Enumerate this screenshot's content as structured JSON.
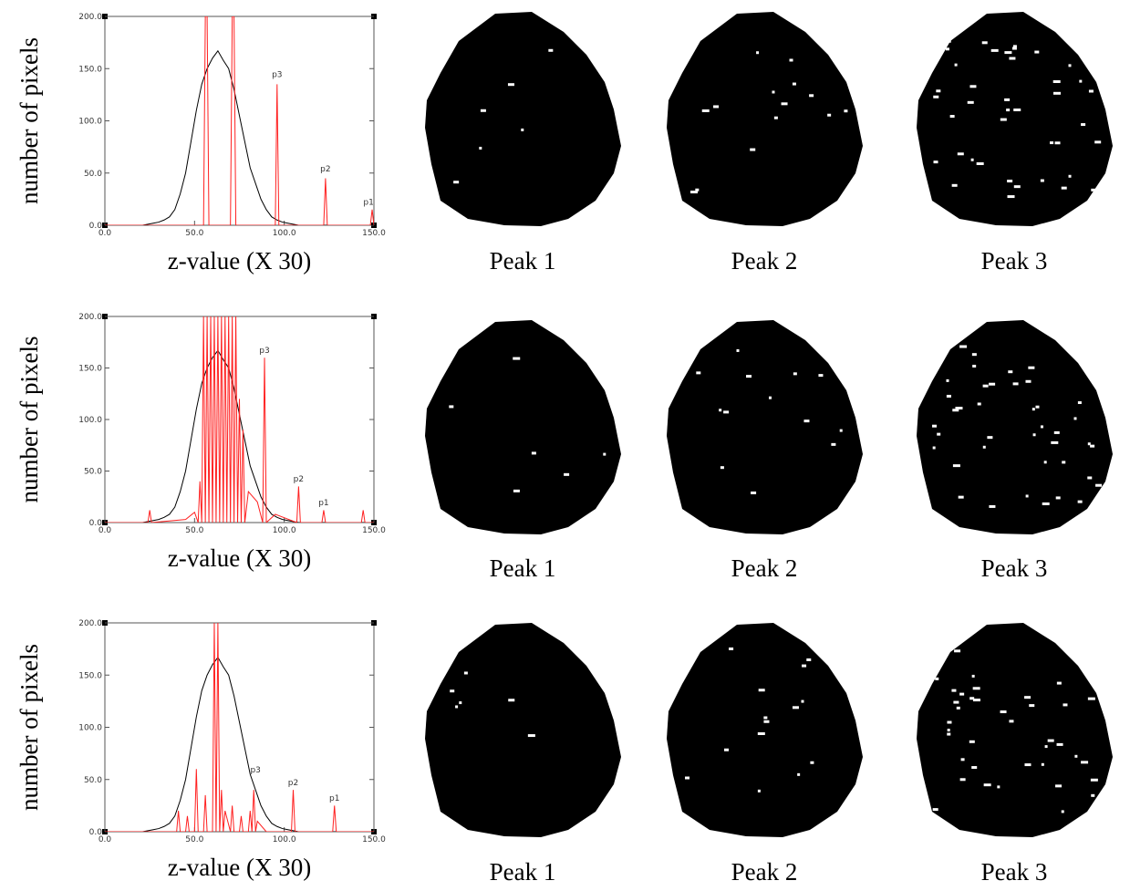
{
  "chart_data": [
    {
      "type": "line",
      "ylabel": "number of pixels",
      "xlabel": "z-value (X 30)",
      "xlim": [
        0,
        150
      ],
      "ylim": [
        0,
        200
      ],
      "xticks": [
        {
          "value": 0,
          "label": "0.0"
        },
        {
          "value": 50,
          "label": "50.0"
        },
        {
          "value": 100,
          "label": "100.0"
        },
        {
          "value": 150,
          "label": "150.0"
        }
      ],
      "yticks": [
        {
          "value": 0,
          "label": "0.0"
        },
        {
          "value": 50,
          "label": "50.0"
        },
        {
          "value": 100,
          "label": "100.0"
        },
        {
          "value": 150,
          "label": "150.0"
        },
        {
          "value": 200,
          "label": "200.0"
        }
      ],
      "series": [
        {
          "color": "#000000",
          "x": [
            0,
            3,
            6,
            9,
            12,
            15,
            18,
            21,
            24,
            27,
            30,
            33,
            36,
            39,
            42,
            45,
            48,
            51,
            54,
            57,
            60,
            63,
            66,
            69,
            72,
            75,
            78,
            81,
            84,
            87,
            90,
            93,
            96,
            99,
            102,
            105,
            108,
            111,
            114,
            117,
            120,
            123,
            126,
            129,
            132,
            135,
            138,
            141,
            144,
            147,
            150
          ],
          "values": [
            0,
            0,
            0,
            0,
            0,
            0,
            0,
            0,
            1,
            2,
            3,
            5,
            8,
            15,
            30,
            50,
            80,
            110,
            135,
            150,
            160,
            167,
            158,
            150,
            130,
            105,
            80,
            55,
            40,
            25,
            15,
            8,
            5,
            3,
            2,
            1,
            0,
            0,
            0,
            0,
            0,
            0,
            0,
            0,
            0,
            0,
            0,
            0,
            0,
            0,
            0
          ]
        },
        {
          "color": "#ff2020",
          "x": [
            0,
            55,
            56,
            57,
            58,
            59,
            70,
            71,
            72,
            73,
            74,
            95,
            96,
            97,
            122,
            123,
            124,
            148,
            149,
            150
          ],
          "values": [
            0,
            0,
            200,
            200,
            0,
            0,
            0,
            200,
            200,
            0,
            0,
            0,
            135,
            0,
            0,
            45,
            0,
            0,
            15,
            0
          ]
        }
      ],
      "annotations": [
        {
          "text": "p3",
          "x": 96,
          "y": 140
        },
        {
          "text": "p2",
          "x": 123,
          "y": 50
        },
        {
          "text": "p1",
          "x": 147,
          "y": 18
        }
      ]
    },
    {
      "type": "line",
      "ylabel": "number of pixels",
      "xlabel": "z-value (X 30)",
      "xlim": [
        0,
        150
      ],
      "ylim": [
        0,
        200
      ],
      "xticks": [
        {
          "value": 0,
          "label": "0.0"
        },
        {
          "value": 50,
          "label": "50.0"
        },
        {
          "value": 100,
          "label": "100.0"
        },
        {
          "value": 150,
          "label": "150.0"
        }
      ],
      "yticks": [
        {
          "value": 0,
          "label": "0.0"
        },
        {
          "value": 50,
          "label": "50.0"
        },
        {
          "value": 100,
          "label": "100.0"
        },
        {
          "value": 150,
          "label": "150.0"
        },
        {
          "value": 200,
          "label": "200.0"
        }
      ],
      "series": [
        {
          "color": "#000000",
          "x": [
            0,
            3,
            6,
            9,
            12,
            15,
            18,
            21,
            24,
            27,
            30,
            33,
            36,
            39,
            42,
            45,
            48,
            51,
            54,
            57,
            60,
            63,
            66,
            69,
            72,
            75,
            78,
            81,
            84,
            87,
            90,
            93,
            96,
            99,
            102,
            105,
            108,
            111,
            114,
            117,
            120,
            123,
            126,
            129,
            132,
            135,
            138,
            141,
            144,
            147,
            150
          ],
          "values": [
            0,
            0,
            0,
            0,
            0,
            0,
            0,
            0,
            1,
            2,
            3,
            5,
            8,
            15,
            30,
            50,
            80,
            110,
            135,
            150,
            160,
            167,
            158,
            150,
            130,
            105,
            80,
            55,
            40,
            25,
            15,
            8,
            5,
            3,
            2,
            1,
            0,
            0,
            0,
            0,
            0,
            0,
            0,
            0,
            0,
            0,
            0,
            0,
            0,
            0,
            0
          ]
        },
        {
          "color": "#ff2020",
          "x": [
            0,
            24,
            25,
            26,
            45,
            50,
            52,
            53,
            54,
            55,
            56,
            57,
            58,
            59,
            60,
            61,
            62,
            63,
            64,
            65,
            66,
            67,
            68,
            69,
            70,
            71,
            72,
            73,
            74,
            75,
            76,
            77,
            78,
            80,
            85,
            88,
            89,
            90,
            95,
            107,
            108,
            109,
            121,
            122,
            123,
            143,
            144,
            145,
            150
          ],
          "values": [
            0,
            0,
            12,
            0,
            3,
            10,
            0,
            40,
            0,
            200,
            0,
            200,
            0,
            200,
            0,
            200,
            0,
            200,
            0,
            200,
            0,
            200,
            0,
            200,
            0,
            200,
            0,
            200,
            0,
            120,
            0,
            90,
            0,
            30,
            20,
            0,
            160,
            0,
            8,
            0,
            35,
            0,
            0,
            12,
            0,
            0,
            12,
            0,
            0
          ]
        }
      ],
      "annotations": [
        {
          "text": "p3",
          "x": 89,
          "y": 163
        },
        {
          "text": "p2",
          "x": 108,
          "y": 38
        },
        {
          "text": "p1",
          "x": 122,
          "y": 15
        }
      ]
    },
    {
      "type": "line",
      "ylabel": "number of pixels",
      "xlabel": "z-value (X 30)",
      "xlim": [
        0,
        150
      ],
      "ylim": [
        0,
        200
      ],
      "xticks": [
        {
          "value": 0,
          "label": "0.0"
        },
        {
          "value": 50,
          "label": "50.0"
        },
        {
          "value": 100,
          "label": "100.0"
        },
        {
          "value": 150,
          "label": "150.0"
        }
      ],
      "yticks": [
        {
          "value": 0,
          "label": "0.0"
        },
        {
          "value": 50,
          "label": "50.0"
        },
        {
          "value": 100,
          "label": "100.0"
        },
        {
          "value": 150,
          "label": "150.0"
        },
        {
          "value": 200,
          "label": "200.0"
        }
      ],
      "series": [
        {
          "color": "#000000",
          "x": [
            0,
            3,
            6,
            9,
            12,
            15,
            18,
            21,
            24,
            27,
            30,
            33,
            36,
            39,
            42,
            45,
            48,
            51,
            54,
            57,
            60,
            63,
            66,
            69,
            72,
            75,
            78,
            81,
            84,
            87,
            90,
            93,
            96,
            99,
            102,
            105,
            108,
            111,
            114,
            117,
            120,
            123,
            126,
            129,
            132,
            135,
            138,
            141,
            144,
            147,
            150
          ],
          "values": [
            0,
            0,
            0,
            0,
            0,
            0,
            0,
            0,
            1,
            2,
            3,
            5,
            8,
            15,
            30,
            50,
            80,
            110,
            135,
            150,
            160,
            167,
            158,
            150,
            130,
            105,
            80,
            55,
            40,
            25,
            15,
            8,
            5,
            3,
            2,
            1,
            0,
            0,
            0,
            0,
            0,
            0,
            0,
            0,
            0,
            0,
            0,
            0,
            0,
            0,
            0
          ]
        },
        {
          "color": "#ff2020",
          "x": [
            0,
            30,
            40,
            41,
            42,
            45,
            46,
            47,
            50,
            51,
            52,
            55,
            56,
            57,
            60,
            61,
            62,
            63,
            64,
            65,
            66,
            67,
            70,
            71,
            72,
            75,
            76,
            77,
            80,
            81,
            82,
            83,
            84,
            85,
            90,
            104,
            105,
            106,
            127,
            128,
            129,
            150
          ],
          "values": [
            0,
            0,
            0,
            20,
            0,
            0,
            15,
            0,
            0,
            60,
            0,
            0,
            35,
            0,
            0,
            200,
            0,
            200,
            0,
            40,
            0,
            20,
            0,
            25,
            0,
            0,
            15,
            0,
            0,
            20,
            0,
            40,
            0,
            10,
            0,
            0,
            40,
            0,
            0,
            25,
            0,
            0
          ]
        }
      ],
      "annotations": [
        {
          "text": "p3",
          "x": 84,
          "y": 55
        },
        {
          "text": "p2",
          "x": 105,
          "y": 43
        },
        {
          "text": "p1",
          "x": 128,
          "y": 28
        }
      ]
    }
  ],
  "image_labels": [
    [
      "Peak 1",
      "Peak 2",
      "Peak 3"
    ],
    [
      "Peak 1",
      "Peak 2",
      "Peak 3"
    ],
    [
      "Peak 1",
      "Peak 2",
      "Peak 3"
    ]
  ]
}
